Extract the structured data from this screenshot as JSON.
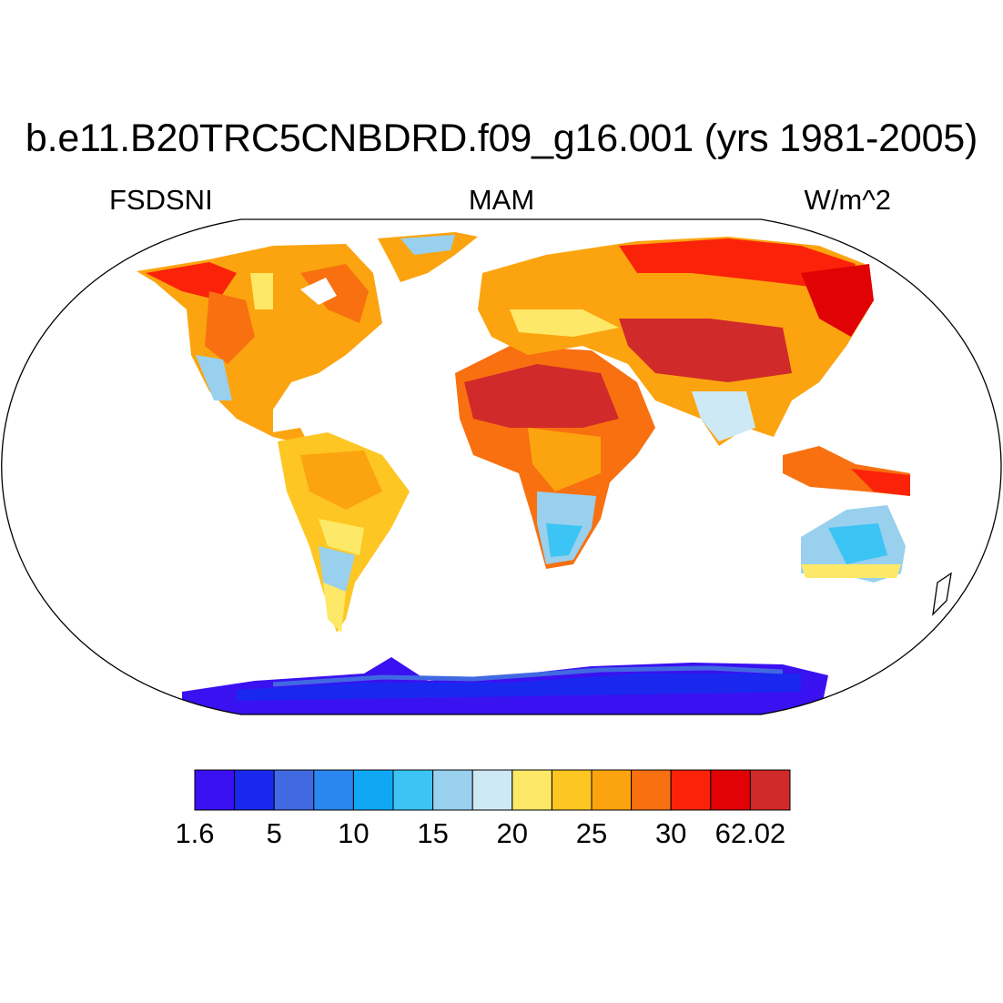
{
  "title": "b.e11.B20TRC5CNBDRD.f09_g16.001 (yrs 1981-2005)",
  "left_label": "FSDSNI",
  "center_label": "MAM",
  "right_label": "W/m^2",
  "colorbar": {
    "colors": [
      "#3a11f0",
      "#1a28ef",
      "#4169e1",
      "#2a86f0",
      "#10a8f5",
      "#3cc4f4",
      "#99d0ee",
      "#cde9f5",
      "#fde967",
      "#fdc623",
      "#fba40f",
      "#f87010",
      "#fa2309",
      "#e10205",
      "#d02a2a"
    ],
    "labels": [
      {
        "text": "1.6",
        "boundary": 0
      },
      {
        "text": "5",
        "boundary": 2
      },
      {
        "text": "10",
        "boundary": 4
      },
      {
        "text": "15",
        "boundary": 6
      },
      {
        "text": "20",
        "boundary": 8
      },
      {
        "text": "25",
        "boundary": 10
      },
      {
        "text": "30",
        "boundary": 12
      },
      {
        "text": "62.02",
        "boundary": 14
      }
    ]
  }
}
